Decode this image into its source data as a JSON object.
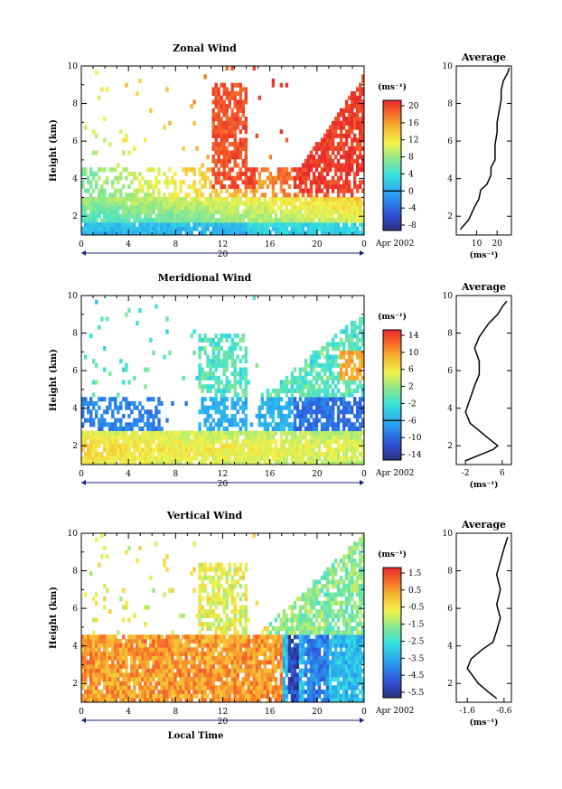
{
  "chart_data": [
    {
      "type": "heatmap",
      "title": "Zonal Wind",
      "ylabel": "Height (km)",
      "y_ticks": [
        "2",
        "4",
        "6",
        "8",
        "10"
      ],
      "x_ticks": [
        "0",
        "4",
        "8",
        "12",
        "16",
        "20",
        "0"
      ],
      "date_label": "20",
      "date_note": "Apr 2002",
      "ylim": [
        1,
        10
      ],
      "xlim": [
        0,
        24
      ],
      "colorbar": {
        "unit": "(ms⁻¹)",
        "ticks": [
          "20",
          "16",
          "12",
          "8",
          "4",
          "0",
          "-4",
          "-8"
        ],
        "range": [
          -10,
          22
        ]
      },
      "profile": {
        "title": "Average",
        "xlabel": "(ms⁻¹)",
        "x_ticks": [
          "10",
          "20"
        ],
        "y_ticks": [
          "2",
          "4",
          "6",
          "8",
          "10"
        ],
        "xlim": [
          0,
          27
        ],
        "points": [
          [
            2,
            1.3
          ],
          [
            6,
            1.8
          ],
          [
            9,
            2.5
          ],
          [
            11,
            2.9
          ],
          [
            12,
            3.4
          ],
          [
            15,
            3.7
          ],
          [
            17,
            4.2
          ],
          [
            17,
            4.6
          ],
          [
            19,
            5.0
          ],
          [
            19,
            5.8
          ],
          [
            20,
            6.5
          ],
          [
            20,
            7.0
          ],
          [
            21,
            7.6
          ],
          [
            22,
            8.2
          ],
          [
            22,
            8.7
          ],
          [
            23,
            9.2
          ],
          [
            25,
            9.6
          ],
          [
            26,
            9.9
          ]
        ]
      }
    },
    {
      "type": "heatmap",
      "title": "Meridional Wind",
      "ylabel": "Height (km)",
      "y_ticks": [
        "2",
        "4",
        "6",
        "8",
        "10"
      ],
      "x_ticks": [
        "0",
        "4",
        "8",
        "12",
        "16",
        "20",
        "0"
      ],
      "date_label": "20",
      "date_note": "Apr 2002",
      "ylim": [
        1,
        10
      ],
      "xlim": [
        0,
        24
      ],
      "colorbar": {
        "unit": "(ms⁻¹)",
        "ticks": [
          "14",
          "10",
          "6",
          "2",
          "-2",
          "-6",
          "-10",
          "-14"
        ],
        "range": [
          -16,
          16
        ]
      },
      "profile": {
        "title": "Average",
        "xlabel": "(ms⁻¹)",
        "x_ticks": [
          "-2",
          "6"
        ],
        "y_ticks": [
          "2",
          "4",
          "6",
          "8",
          "10"
        ],
        "xlim": [
          -4,
          8
        ],
        "points": [
          [
            -2,
            1.2
          ],
          [
            1,
            1.5
          ],
          [
            4,
            1.8
          ],
          [
            5,
            2.0
          ],
          [
            2,
            2.6
          ],
          [
            -1,
            3.2
          ],
          [
            -2,
            3.8
          ],
          [
            -1,
            4.5
          ],
          [
            0,
            5.2
          ],
          [
            1,
            5.8
          ],
          [
            1,
            6.5
          ],
          [
            0,
            7.2
          ],
          [
            1,
            7.8
          ],
          [
            3,
            8.5
          ],
          [
            5,
            9.0
          ],
          [
            6,
            9.4
          ],
          [
            7,
            9.7
          ]
        ]
      }
    },
    {
      "type": "heatmap",
      "title": "Vertical Wind",
      "ylabel": "Height (km)",
      "y_ticks": [
        "2",
        "4",
        "6",
        "8",
        "10"
      ],
      "x_ticks": [
        "0",
        "4",
        "8",
        "12",
        "16",
        "20",
        "0"
      ],
      "date_label": "20",
      "date_note": "Apr 2002",
      "xlabel": "Local Time",
      "ylim": [
        1,
        10
      ],
      "xlim": [
        0,
        24
      ],
      "colorbar": {
        "unit": "(ms⁻¹)",
        "ticks": [
          "1.5",
          "0.5",
          "-0.5",
          "-1.5",
          "-2.5",
          "-3.5",
          "-4.5",
          "-5.5"
        ],
        "range": [
          -6.2,
          2.0
        ]
      },
      "profile": {
        "title": "Average",
        "xlabel": "(ms⁻¹)",
        "x_ticks": [
          "-1.6",
          "-0.6"
        ],
        "y_ticks": [
          "2",
          "4",
          "6",
          "8",
          "10"
        ],
        "xlim": [
          -1.9,
          -0.4
        ],
        "points": [
          [
            -0.8,
            1.2
          ],
          [
            -1.0,
            1.5
          ],
          [
            -1.3,
            2.0
          ],
          [
            -1.6,
            2.8
          ],
          [
            -1.5,
            3.3
          ],
          [
            -1.2,
            3.8
          ],
          [
            -0.9,
            4.2
          ],
          [
            -0.8,
            4.8
          ],
          [
            -0.7,
            5.5
          ],
          [
            -0.8,
            6.2
          ],
          [
            -0.7,
            7.0
          ],
          [
            -0.8,
            7.8
          ],
          [
            -0.7,
            8.5
          ],
          [
            -0.6,
            9.2
          ],
          [
            -0.5,
            9.8
          ]
        ]
      }
    }
  ]
}
